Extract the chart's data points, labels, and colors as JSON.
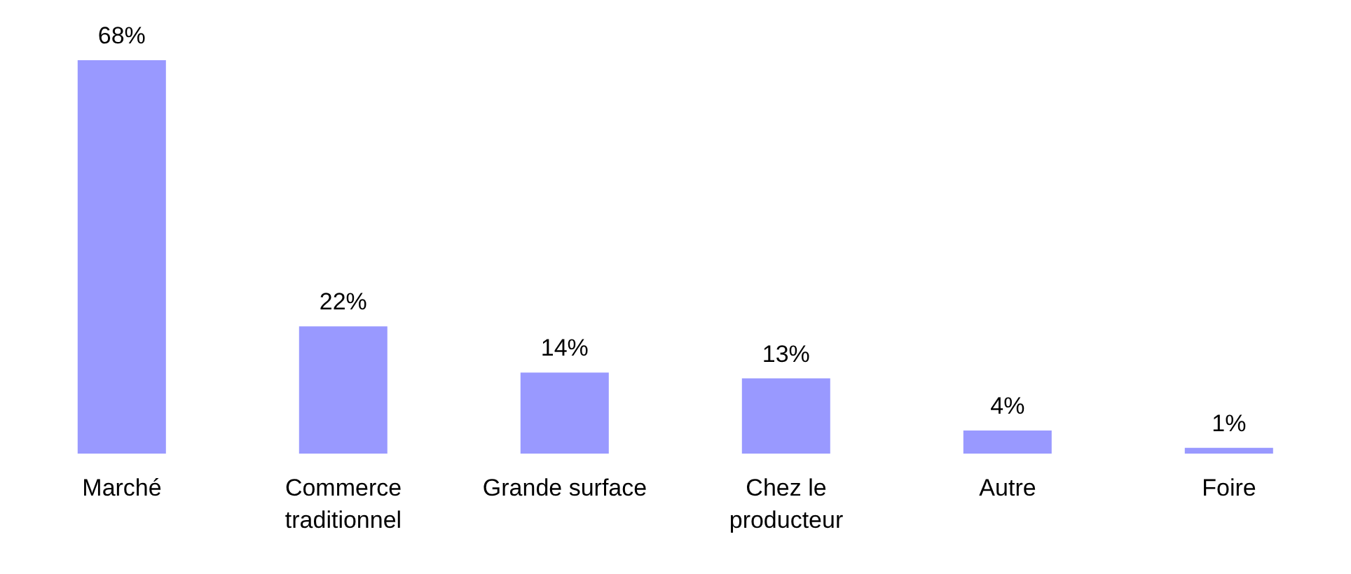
{
  "chart_data": {
    "type": "bar",
    "categories": [
      "Marché",
      "Commerce traditionnel",
      "Grande surface",
      "Chez le producteur",
      "Autre",
      "Foire"
    ],
    "values": [
      68,
      22,
      14,
      13,
      4,
      1
    ],
    "value_labels": [
      "68%",
      "22%",
      "14%",
      "13%",
      "4%",
      "1%"
    ],
    "color": "#9999ff",
    "grid": false,
    "legend": false
  }
}
